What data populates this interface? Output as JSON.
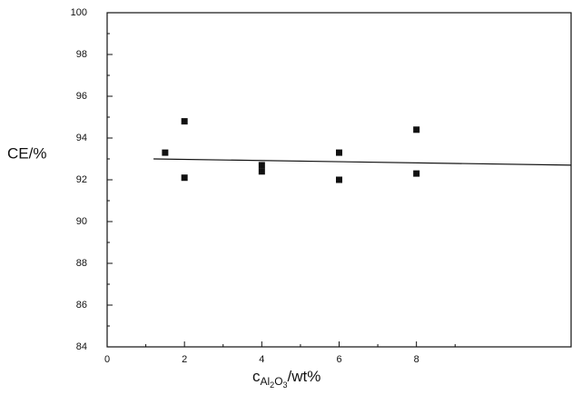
{
  "chart_data": {
    "type": "scatter",
    "y_label": "CE/%",
    "x_label_parts": [
      "c",
      "Al",
      "2",
      "O",
      "3",
      "/wt%"
    ],
    "xlim": [
      0,
      12
    ],
    "xticks": [
      0,
      2,
      4,
      6,
      8
    ],
    "ylim": [
      84,
      100
    ],
    "yticks": [
      84,
      86,
      88,
      90,
      92,
      94,
      96,
      98,
      100
    ],
    "color": "#111111",
    "series": [
      {
        "x": [
          1.5,
          2,
          2,
          4,
          4,
          6,
          6,
          8,
          8
        ],
        "values": [
          93.3,
          94.8,
          92.1,
          92.7,
          92.4,
          93.3,
          92.0,
          94.4,
          92.3
        ]
      }
    ],
    "trend": {
      "x": [
        1.2,
        12
      ],
      "values": [
        93.0,
        92.7
      ]
    }
  }
}
